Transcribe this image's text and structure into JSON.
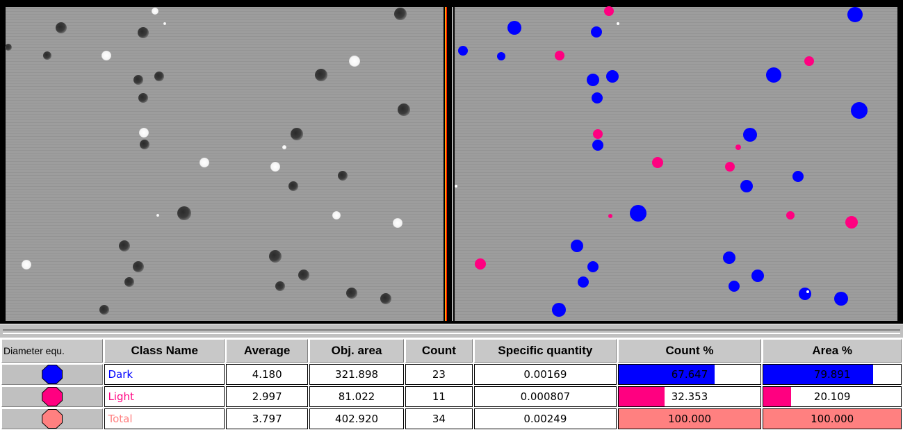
{
  "table": {
    "headers": {
      "icon": "Diameter equ.",
      "class_name": "Class Name",
      "average": "Average",
      "obj_area": "Obj. area",
      "count": "Count",
      "specific_quantity": "Specific quantity",
      "count_pct": "Count %",
      "area_pct": "Area %"
    },
    "rows": [
      {
        "class_name": "Dark",
        "color": "#0000ff",
        "average": "4.180",
        "obj_area": "321.898",
        "count": "23",
        "specific_quantity": "0.00169",
        "count_pct": "67.647",
        "count_pct_value": 67.647,
        "area_pct": "79.891",
        "area_pct_value": 79.891
      },
      {
        "class_name": "Light",
        "color": "#ff0080",
        "average": "2.997",
        "obj_area": "81.022",
        "count": "11",
        "specific_quantity": "0.000807",
        "count_pct": "32.353",
        "count_pct_value": 32.353,
        "area_pct": "20.109",
        "area_pct_value": 20.109
      },
      {
        "class_name": "Total",
        "color": "#ff8080",
        "average": "3.797",
        "obj_area": "402.920",
        "count": "34",
        "specific_quantity": "0.00249",
        "count_pct": "100.000",
        "count_pct_value": 100,
        "area_pct": "100.000",
        "area_pct_value": 100
      }
    ]
  },
  "colors": {
    "dark_class": "#0000ff",
    "light_class": "#ff0080",
    "total_class": "#ff8080",
    "image_background": "#9a9a9a"
  }
}
